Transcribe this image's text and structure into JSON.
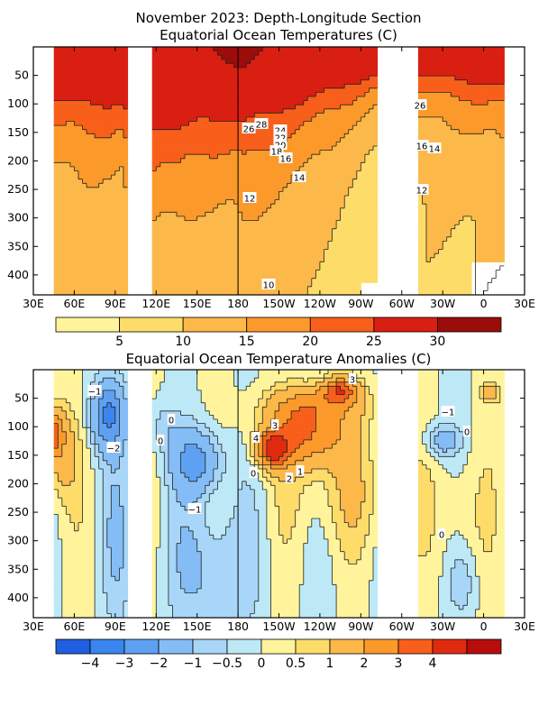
{
  "chart_data": [
    {
      "type": "heatmap",
      "title": "November 2023: Depth-Longitude Section",
      "subtitle": "Equatorial Ocean Temperatures (C)",
      "xlabel": "",
      "ylabel": "",
      "x_range": [
        30,
        390
      ],
      "x_ticks": [
        30,
        60,
        90,
        120,
        150,
        180,
        210,
        240,
        270,
        300,
        330,
        360,
        390
      ],
      "x_tick_labels": [
        "30E",
        "60E",
        "90E",
        "120E",
        "150E",
        "180",
        "150W",
        "120W",
        "90W",
        "60W",
        "30W",
        "0",
        "30E"
      ],
      "y_range": [
        435,
        0
      ],
      "y_ticks": [
        50,
        100,
        150,
        200,
        250,
        300,
        350,
        400
      ],
      "y_tick_labels": [
        "50",
        "100",
        "150",
        "200",
        "250",
        "300",
        "350",
        "400"
      ],
      "no_data_longitudes": [
        [
          98,
          118
        ],
        [
          283,
          312
        ],
        [
          376,
          390
        ]
      ],
      "colorbar": {
        "levels": [
          5,
          10,
          15,
          20,
          25,
          30
        ],
        "tick_labels": [
          "5",
          "10",
          "15",
          "20",
          "25",
          "30"
        ],
        "colors": [
          "#fff49c",
          "#fedc6a",
          "#fdb84a",
          "#fb9a2a",
          "#f75f1a",
          "#d91e12",
          "#9c0c0a"
        ]
      },
      "contour_labels": [
        "26",
        "28",
        "24",
        "22",
        "20",
        "18",
        "16",
        "14",
        "12",
        "10",
        "26",
        "16",
        "14",
        "12"
      ]
    },
    {
      "type": "heatmap",
      "title": "Equatorial Ocean Temperature Anomalies (C)",
      "xlabel": "",
      "ylabel": "",
      "x_range": [
        30,
        390
      ],
      "x_ticks": [
        30,
        60,
        90,
        120,
        150,
        180,
        210,
        240,
        270,
        300,
        330,
        360,
        390
      ],
      "x_tick_labels": [
        "30E",
        "60E",
        "90E",
        "120E",
        "150E",
        "180",
        "150W",
        "120W",
        "90W",
        "60W",
        "30W",
        "0",
        "30E"
      ],
      "y_range": [
        435,
        0
      ],
      "y_ticks": [
        50,
        100,
        150,
        200,
        250,
        300,
        350,
        400
      ],
      "y_tick_labels": [
        "50",
        "100",
        "150",
        "200",
        "250",
        "300",
        "350",
        "400"
      ],
      "no_data_longitudes": [
        [
          98,
          118
        ],
        [
          283,
          312
        ],
        [
          376,
          390
        ]
      ],
      "colorbar": {
        "levels": [
          -4,
          -3,
          -2,
          -1,
          -0.5,
          0,
          0.5,
          1,
          2,
          3,
          4
        ],
        "tick_labels": [
          "−4",
          "−3",
          "−2",
          "−1",
          "−0.5",
          "0",
          "0.5",
          "1",
          "2",
          "3",
          "4"
        ],
        "colors": [
          "#1f5fe0",
          "#3a85ee",
          "#5ea1f2",
          "#84bdf6",
          "#a8d6f8",
          "#bde9f6",
          "#fff49c",
          "#fedc6a",
          "#fdb84a",
          "#fb9a2a",
          "#f75f1a",
          "#e02a10",
          "#b80d0d"
        ]
      },
      "contour_labels": [
        "−1",
        "−2",
        "0",
        "1",
        "4",
        "3",
        "2",
        "1",
        "3",
        "0",
        "−1",
        "0",
        "−1",
        "0",
        "0"
      ]
    }
  ]
}
